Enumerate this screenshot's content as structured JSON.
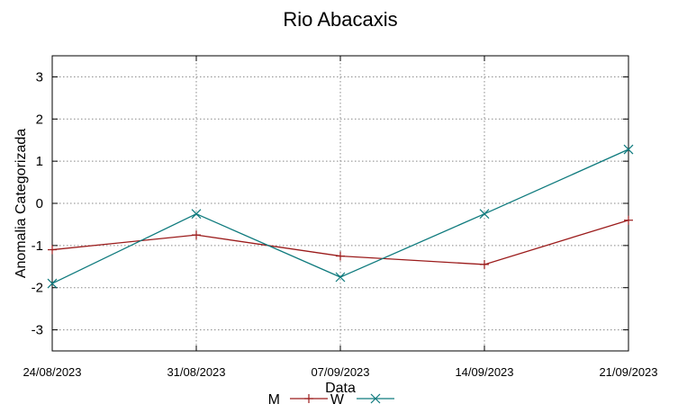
{
  "chart_data": {
    "type": "line",
    "title": "Rio Abacaxis",
    "xlabel": "Data",
    "ylabel": "Anomalia Categorizada",
    "categories": [
      "24/08/2023",
      "31/08/2023",
      "07/09/2023",
      "14/09/2023",
      "21/09/2023"
    ],
    "yticks": [
      3,
      2,
      1,
      0,
      -1,
      -2,
      -3
    ],
    "ylim": [
      -3.5,
      3.5
    ],
    "grid": true,
    "legend_position": "bottom",
    "series": [
      {
        "name": "M",
        "values": [
          -1.1,
          -0.75,
          -1.25,
          -1.45,
          -0.4
        ],
        "color": "#9b1b1b",
        "marker": "plus"
      },
      {
        "name": "W",
        "values": [
          -1.9,
          -0.25,
          -1.75,
          -0.25,
          1.28
        ],
        "color": "#0e7a7d",
        "marker": "cross"
      }
    ]
  }
}
